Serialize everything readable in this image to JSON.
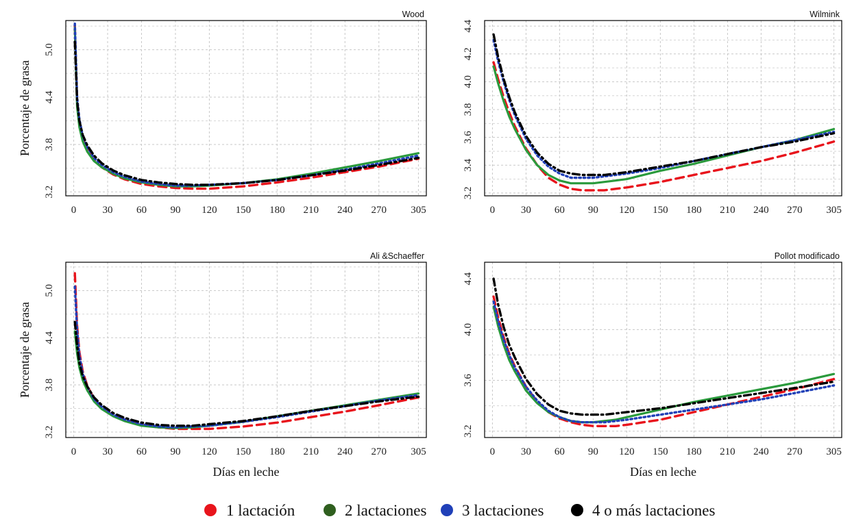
{
  "figure": {
    "ylabel": "Porcentaje de grasa",
    "xlabel": "Días en leche"
  },
  "legend": [
    {
      "label": "1 lactación",
      "color": "#e8141c"
    },
    {
      "label": "2 lactaciones",
      "color": "#2f5f1f"
    },
    {
      "label": "3 lactaciones",
      "color": "#2040b8"
    },
    {
      "label": "4 o más lactaciones",
      "color": "#000000"
    }
  ],
  "chart_data": [
    {
      "type": "line",
      "title": "Wood",
      "ylabel": "Porcentaje de grasa",
      "xlabel": "",
      "xticks": [
        "0",
        "30",
        "60",
        "90",
        "120",
        "150",
        "180",
        "210",
        "240",
        "270",
        "305"
      ],
      "xlim": [
        -7,
        312
      ],
      "yticks": [
        3.2,
        3.8,
        4.4,
        5.0
      ],
      "yticklabels": [
        "3.2",
        "3.8",
        "4.4",
        "5.0"
      ],
      "ylim": [
        3.15,
        5.37
      ],
      "grid": true,
      "x": [
        1,
        3,
        5,
        8,
        12,
        18,
        25,
        35,
        45,
        60,
        75,
        90,
        105,
        120,
        150,
        180,
        210,
        240,
        270,
        305
      ],
      "series": [
        {
          "name": "1 lactación",
          "color": "#e8141c",
          "style": "dashed",
          "values": [
            5.3,
            4.35,
            4.08,
            3.88,
            3.74,
            3.6,
            3.51,
            3.42,
            3.36,
            3.3,
            3.27,
            3.25,
            3.24,
            3.24,
            3.27,
            3.32,
            3.38,
            3.45,
            3.52,
            3.62
          ]
        },
        {
          "name": "2 lactaciones",
          "color": "#2a9a3c",
          "style": "solid",
          "values": [
            5.28,
            4.28,
            4.02,
            3.84,
            3.71,
            3.59,
            3.51,
            3.43,
            3.37,
            3.32,
            3.29,
            3.27,
            3.27,
            3.28,
            3.31,
            3.36,
            3.43,
            3.51,
            3.59,
            3.69
          ]
        },
        {
          "name": "3 lactaciones",
          "color": "#2040b8",
          "style": "dotted",
          "values": [
            5.33,
            4.4,
            4.12,
            3.91,
            3.77,
            3.63,
            3.54,
            3.45,
            3.39,
            3.33,
            3.3,
            3.28,
            3.28,
            3.29,
            3.31,
            3.35,
            3.41,
            3.48,
            3.56,
            3.66
          ]
        },
        {
          "name": "4 o más lactaciones",
          "color": "#000000",
          "style": "dashdot",
          "values": [
            5.1,
            4.35,
            4.1,
            3.92,
            3.79,
            3.66,
            3.56,
            3.47,
            3.41,
            3.35,
            3.32,
            3.3,
            3.29,
            3.29,
            3.31,
            3.35,
            3.41,
            3.47,
            3.54,
            3.63
          ]
        }
      ]
    },
    {
      "type": "line",
      "title": "Wilmink",
      "ylabel": "",
      "xlabel": "",
      "xticks": [
        "0",
        "30",
        "60",
        "90",
        "120",
        "150",
        "180",
        "210",
        "240",
        "270",
        "305"
      ],
      "xlim": [
        -7,
        312
      ],
      "yticks": [
        3.2,
        3.4,
        3.6,
        3.8,
        4.0,
        4.2,
        4.4
      ],
      "yticklabels": [
        "3.2",
        "3.4",
        "3.6",
        "3.8",
        "4.0",
        "4.2",
        "4.4"
      ],
      "ylim": [
        3.18,
        4.44
      ],
      "grid": true,
      "x": [
        1,
        5,
        10,
        15,
        20,
        30,
        40,
        50,
        60,
        70,
        80,
        90,
        100,
        110,
        120,
        150,
        180,
        210,
        240,
        270,
        305
      ],
      "series": [
        {
          "name": "1 lactación",
          "color": "#e8141c",
          "style": "dashed",
          "values": [
            4.14,
            4.02,
            3.89,
            3.78,
            3.68,
            3.52,
            3.4,
            3.31,
            3.26,
            3.23,
            3.22,
            3.22,
            3.22,
            3.23,
            3.24,
            3.28,
            3.33,
            3.38,
            3.43,
            3.49,
            3.57
          ]
        },
        {
          "name": "2 lactaciones",
          "color": "#2a9a3c",
          "style": "solid",
          "values": [
            4.11,
            3.99,
            3.86,
            3.75,
            3.66,
            3.51,
            3.4,
            3.33,
            3.29,
            3.27,
            3.27,
            3.27,
            3.28,
            3.29,
            3.3,
            3.36,
            3.41,
            3.47,
            3.53,
            3.58,
            3.66
          ]
        },
        {
          "name": "3 lactaciones",
          "color": "#2040b8",
          "style": "dotted",
          "values": [
            4.3,
            4.15,
            4.0,
            3.87,
            3.76,
            3.59,
            3.47,
            3.39,
            3.34,
            3.31,
            3.31,
            3.31,
            3.32,
            3.33,
            3.34,
            3.38,
            3.43,
            3.48,
            3.53,
            3.58,
            3.64
          ]
        },
        {
          "name": "4 o más lactaciones",
          "color": "#000000",
          "style": "dashdot",
          "values": [
            4.34,
            4.18,
            4.02,
            3.89,
            3.78,
            3.61,
            3.49,
            3.41,
            3.36,
            3.34,
            3.33,
            3.33,
            3.33,
            3.34,
            3.35,
            3.39,
            3.43,
            3.48,
            3.53,
            3.57,
            3.63
          ]
        }
      ]
    },
    {
      "type": "line",
      "title": "Ali &Schaeffer",
      "ylabel": "Porcentaje de grasa",
      "xlabel": "Días en leche",
      "xticks": [
        "0",
        "30",
        "60",
        "90",
        "120",
        "150",
        "180",
        "210",
        "240",
        "270",
        "305"
      ],
      "xlim": [
        -7,
        312
      ],
      "yticks": [
        3.2,
        3.8,
        4.4,
        5.0
      ],
      "yticklabels": [
        "3.2",
        "3.8",
        "4.4",
        "5.0"
      ],
      "ylim": [
        3.13,
        5.36
      ],
      "grid": true,
      "x": [
        1,
        3,
        5,
        8,
        12,
        18,
        25,
        35,
        45,
        60,
        75,
        90,
        105,
        120,
        150,
        180,
        210,
        240,
        270,
        305
      ],
      "series": [
        {
          "name": "1 lactación",
          "color": "#e8141c",
          "style": "dashed",
          "values": [
            5.22,
            4.55,
            4.22,
            3.97,
            3.79,
            3.62,
            3.51,
            3.41,
            3.35,
            3.29,
            3.26,
            3.24,
            3.24,
            3.24,
            3.27,
            3.32,
            3.39,
            3.46,
            3.54,
            3.64
          ]
        },
        {
          "name": "2 lactaciones",
          "color": "#2a9a3c",
          "style": "solid",
          "values": [
            4.48,
            4.2,
            4.02,
            3.86,
            3.73,
            3.59,
            3.49,
            3.4,
            3.34,
            3.28,
            3.26,
            3.25,
            3.26,
            3.28,
            3.33,
            3.4,
            3.47,
            3.54,
            3.61,
            3.69
          ]
        },
        {
          "name": "3 lactaciones",
          "color": "#2040b8",
          "style": "dotted",
          "values": [
            5.05,
            4.5,
            4.18,
            3.94,
            3.78,
            3.62,
            3.52,
            3.42,
            3.36,
            3.3,
            3.27,
            3.26,
            3.27,
            3.28,
            3.33,
            3.39,
            3.46,
            3.53,
            3.6,
            3.67
          ]
        },
        {
          "name": "4 o más lactaciones",
          "color": "#000000",
          "style": "dashdot",
          "values": [
            4.6,
            4.3,
            4.08,
            3.91,
            3.78,
            3.64,
            3.54,
            3.44,
            3.38,
            3.32,
            3.29,
            3.28,
            3.28,
            3.3,
            3.34,
            3.4,
            3.47,
            3.53,
            3.59,
            3.65
          ]
        }
      ]
    },
    {
      "type": "line",
      "title": "Pollot modificado",
      "ylabel": "",
      "xlabel": "Días en leche",
      "xticks": [
        "0",
        "30",
        "60",
        "90",
        "120",
        "150",
        "180",
        "210",
        "240",
        "270",
        "305"
      ],
      "xlim": [
        -7,
        312
      ],
      "yticks": [
        3.2,
        3.6,
        4.0,
        4.4
      ],
      "yticklabels": [
        "3.2",
        "3.6",
        "4.0",
        "4.4"
      ],
      "ylim": [
        3.15,
        4.53
      ],
      "grid": true,
      "x": [
        1,
        5,
        10,
        15,
        20,
        30,
        40,
        50,
        60,
        70,
        80,
        90,
        100,
        110,
        120,
        150,
        180,
        210,
        240,
        270,
        305
      ],
      "series": [
        {
          "name": "1 lactación",
          "color": "#e8141c",
          "style": "dashed",
          "values": [
            4.26,
            4.1,
            3.94,
            3.81,
            3.71,
            3.55,
            3.43,
            3.35,
            3.3,
            3.27,
            3.25,
            3.24,
            3.24,
            3.24,
            3.25,
            3.29,
            3.35,
            3.41,
            3.47,
            3.53,
            3.61
          ]
        },
        {
          "name": "2 lactaciones",
          "color": "#2a9a3c",
          "style": "solid",
          "values": [
            4.18,
            4.03,
            3.88,
            3.76,
            3.67,
            3.52,
            3.42,
            3.35,
            3.31,
            3.28,
            3.27,
            3.27,
            3.28,
            3.29,
            3.31,
            3.37,
            3.43,
            3.48,
            3.53,
            3.58,
            3.65
          ]
        },
        {
          "name": "3 lactaciones",
          "color": "#2040b8",
          "style": "dotted",
          "values": [
            4.22,
            4.07,
            3.92,
            3.8,
            3.7,
            3.55,
            3.44,
            3.36,
            3.31,
            3.28,
            3.27,
            3.27,
            3.27,
            3.28,
            3.29,
            3.33,
            3.37,
            3.41,
            3.45,
            3.5,
            3.56
          ]
        },
        {
          "name": "4 o más lactaciones",
          "color": "#000000",
          "style": "dashdot",
          "values": [
            4.4,
            4.2,
            4.02,
            3.88,
            3.78,
            3.61,
            3.49,
            3.41,
            3.36,
            3.34,
            3.33,
            3.33,
            3.33,
            3.34,
            3.35,
            3.38,
            3.42,
            3.46,
            3.5,
            3.54,
            3.59
          ]
        }
      ]
    }
  ]
}
